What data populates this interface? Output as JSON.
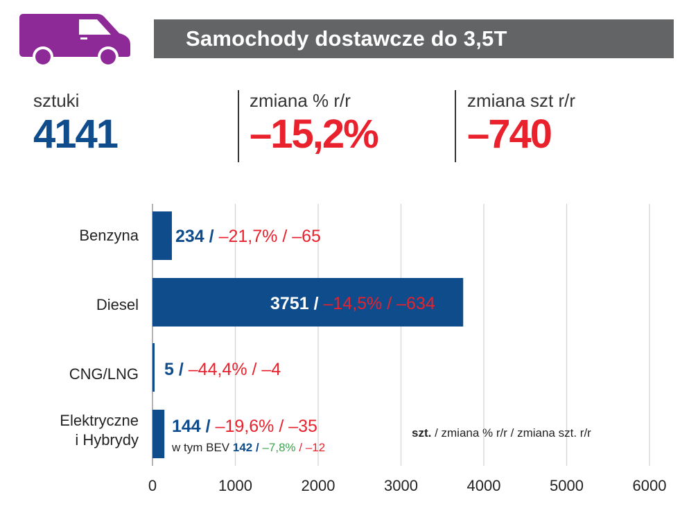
{
  "header": {
    "title": "Samochody dostawcze do 3,5T",
    "icon": "van-icon"
  },
  "kpis": [
    {
      "label": "sztuki",
      "value": "4141"
    },
    {
      "label": "zmiana % r/r",
      "value": "–15,2%"
    },
    {
      "label": "zmiana szt r/r",
      "value": "–740"
    }
  ],
  "colors": {
    "blue": "#0f4c8c",
    "red": "#e8212c",
    "green": "#3aa54a",
    "grey": "#636466",
    "purple": "#8e2a98"
  },
  "chart_data": {
    "type": "bar",
    "orientation": "horizontal",
    "categories": [
      "Benzyna",
      "Diesel",
      "CNG/LNG",
      "Elektryczne i Hybrydy"
    ],
    "values": [
      234,
      3751,
      5,
      144
    ],
    "labels": [
      {
        "units": "234",
        "sep": " /",
        "pct": " –21,7%",
        "sep2": " /",
        "diff": " –65"
      },
      {
        "units": "3751",
        "sep": " /",
        "pct": " –14,5%",
        "sep2": " /",
        "diff": " –634"
      },
      {
        "units": "5",
        "sep": " /",
        "pct": " –44,4%",
        "sep2": " /",
        "diff": " –4"
      },
      {
        "units": "144",
        "sep": " /",
        "pct": " –19,6%",
        "sep2": " /",
        "diff": " –35"
      }
    ],
    "sub_label": {
      "prefix": "w tym BEV",
      "units": "142",
      "sep": "/",
      "pct": "–7,8%",
      "sep2": "/",
      "diff": "–12"
    },
    "legend_note": {
      "bold": "szt.",
      "rest": " / zmiana % r/r / zmiana szt. r/r"
    },
    "xlim": [
      0,
      6000
    ],
    "xticks": [
      0,
      1000,
      2000,
      3000,
      4000,
      5000,
      6000
    ],
    "xtick_labels": [
      "0",
      "1000",
      "2000",
      "3000",
      "4000",
      "5000",
      "6000"
    ],
    "grid": true
  }
}
